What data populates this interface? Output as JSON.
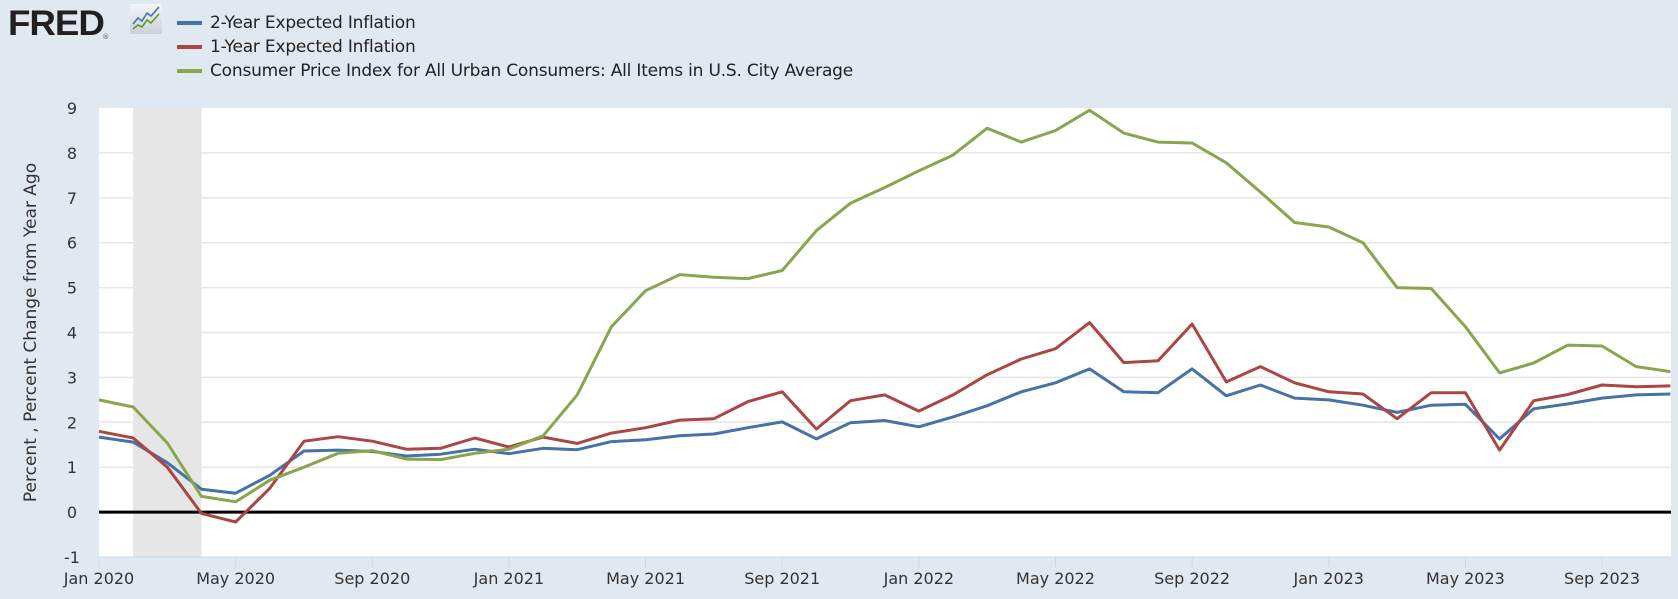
{
  "header": {
    "logo_text": "FRED",
    "logo_mark": "®",
    "logo_icon": "line-chart-icon"
  },
  "colors": {
    "background": "#e1e9f0",
    "plot_background": "#ffffff",
    "recession_shading": "#e6e6e6",
    "gridline": "#e6e6e6",
    "zero_line": "#000000",
    "series_2yr": "#4572a7",
    "series_1yr": "#aa4643",
    "series_cpi": "#89a54e"
  },
  "chart_data": {
    "type": "line",
    "title": "",
    "xlabel": "",
    "ylabel": "Percent , Percent Change from Year Ago",
    "ylim": [
      -1,
      9
    ],
    "yticks": [
      -1,
      0,
      1,
      2,
      3,
      4,
      5,
      6,
      7,
      8,
      9
    ],
    "xticks": [
      "Jan 2020",
      "May 2020",
      "Sep 2020",
      "Jan 2021",
      "May 2021",
      "Sep 2021",
      "Jan 2022",
      "May 2022",
      "Sep 2022",
      "Jan 2023",
      "May 2023",
      "Sep 2023"
    ],
    "grid": true,
    "legend_position": "top-left",
    "recessions": [
      {
        "start": "2020-02",
        "end": "2020-04"
      }
    ],
    "x": [
      "2020-01",
      "2020-02",
      "2020-03",
      "2020-04",
      "2020-05",
      "2020-06",
      "2020-07",
      "2020-08",
      "2020-09",
      "2020-10",
      "2020-11",
      "2020-12",
      "2021-01",
      "2021-02",
      "2021-03",
      "2021-04",
      "2021-05",
      "2021-06",
      "2021-07",
      "2021-08",
      "2021-09",
      "2021-10",
      "2021-11",
      "2021-12",
      "2022-01",
      "2022-02",
      "2022-03",
      "2022-04",
      "2022-05",
      "2022-06",
      "2022-07",
      "2022-08",
      "2022-09",
      "2022-10",
      "2022-11",
      "2022-12",
      "2023-01",
      "2023-02",
      "2023-03",
      "2023-04",
      "2023-05",
      "2023-06",
      "2023-07",
      "2023-08",
      "2023-09",
      "2023-10",
      "2023-11"
    ],
    "series": [
      {
        "name": "2-Year Expected Inflation",
        "color_key": "series_2yr",
        "values": [
          1.67,
          1.56,
          1.1,
          0.51,
          0.42,
          0.82,
          1.36,
          1.38,
          1.35,
          1.25,
          1.29,
          1.4,
          1.3,
          1.42,
          1.39,
          1.57,
          1.61,
          1.7,
          1.74,
          1.88,
          2.01,
          1.63,
          1.99,
          2.04,
          1.9,
          2.12,
          2.37,
          2.68,
          2.88,
          3.19,
          2.68,
          2.66,
          3.19,
          2.59,
          2.83,
          2.54,
          2.5,
          2.38,
          2.22,
          2.38,
          2.4,
          1.63,
          2.3,
          2.41,
          2.54,
          2.61,
          2.63
        ]
      },
      {
        "name": "1-Year Expected Inflation",
        "color_key": "series_1yr",
        "values": [
          1.8,
          1.65,
          1.0,
          -0.03,
          -0.22,
          0.53,
          1.58,
          1.68,
          1.58,
          1.4,
          1.42,
          1.65,
          1.45,
          1.67,
          1.53,
          1.76,
          1.88,
          2.05,
          2.08,
          2.46,
          2.68,
          1.85,
          2.48,
          2.61,
          2.25,
          2.61,
          3.06,
          3.41,
          3.64,
          4.22,
          3.33,
          3.37,
          4.19,
          2.9,
          3.24,
          2.88,
          2.68,
          2.63,
          2.08,
          2.66,
          2.66,
          1.38,
          2.48,
          2.62,
          2.83,
          2.79,
          2.81
        ]
      },
      {
        "name": "Consumer Price Index for All Urban Consumers: All Items in U.S. City Average",
        "color_key": "series_cpi",
        "values": [
          2.5,
          2.34,
          1.54,
          0.35,
          0.23,
          0.71,
          1.0,
          1.31,
          1.37,
          1.18,
          1.17,
          1.31,
          1.4,
          1.7,
          2.61,
          4.13,
          4.93,
          5.29,
          5.23,
          5.2,
          5.38,
          6.27,
          6.88,
          7.23,
          7.6,
          7.95,
          8.55,
          8.24,
          8.5,
          8.95,
          8.44,
          8.24,
          8.22,
          7.78,
          7.13,
          6.45,
          6.35,
          6.0,
          5.0,
          4.98,
          4.13,
          3.1,
          3.32,
          3.72,
          3.7,
          3.24,
          3.13
        ]
      }
    ]
  }
}
